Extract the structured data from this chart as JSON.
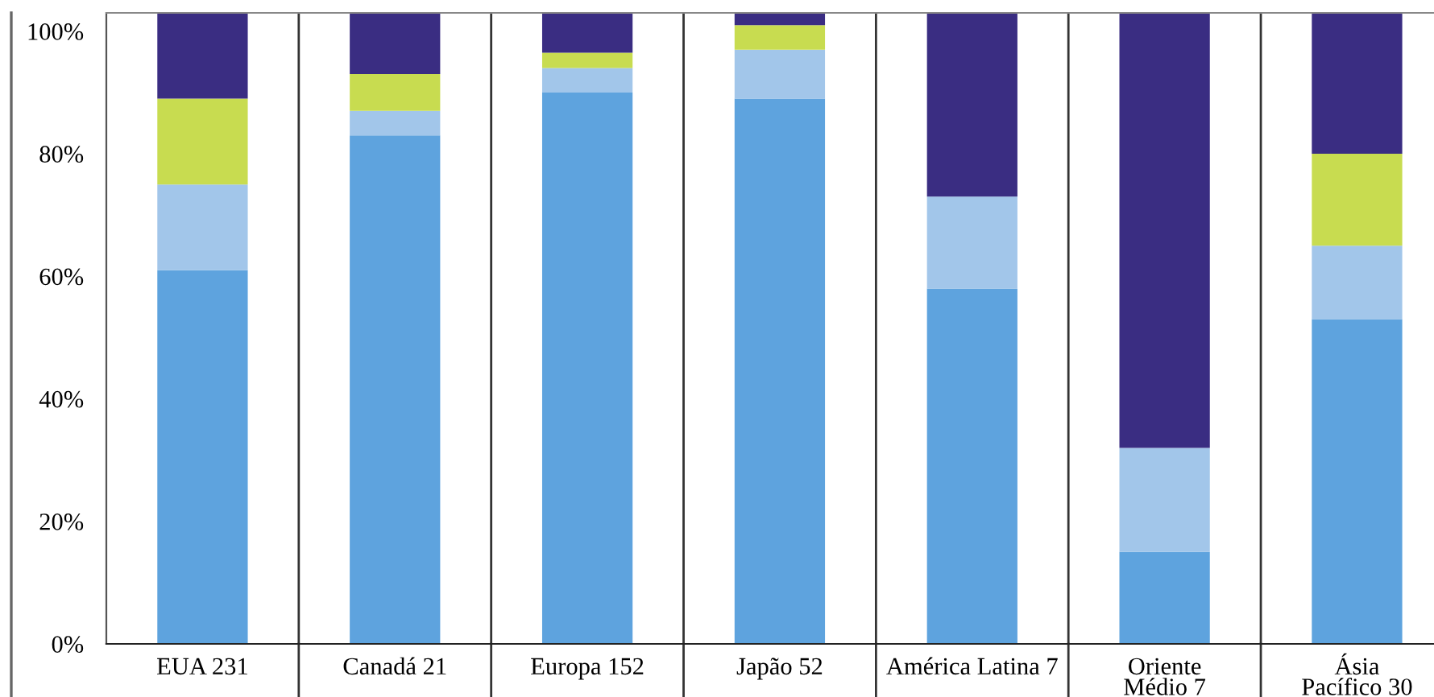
{
  "chart_data": {
    "type": "bar",
    "stacked": true,
    "categories": [
      "EUA 231",
      "Canadá 21",
      "Europa 152",
      "Japão 52",
      "América Latina 7",
      "Oriente\nMédio 7",
      "Ásia\nPacífico 30"
    ],
    "series": [
      {
        "color": "#5ea3de",
        "values": [
          61,
          83,
          90,
          89,
          58,
          15,
          53
        ]
      },
      {
        "color": "#a2c6ea",
        "values": [
          14,
          4,
          4,
          8,
          15,
          17,
          12
        ]
      },
      {
        "color": "#c8dc50",
        "values": [
          14,
          6,
          2.5,
          4,
          0,
          0,
          15
        ]
      },
      {
        "color": "#3a2d82",
        "values": [
          14,
          10,
          6.5,
          2,
          30,
          71,
          23
        ]
      }
    ],
    "ylim": [
      0,
      103
    ],
    "yticks": [
      {
        "value": 0,
        "label": "0%"
      },
      {
        "value": 20,
        "label": "20%"
      },
      {
        "value": 40,
        "label": "40%"
      },
      {
        "value": 60,
        "label": "60%"
      },
      {
        "value": 80,
        "label": "80%"
      },
      {
        "value": 100,
        "label": "100%"
      }
    ],
    "grid": false,
    "legend": false
  }
}
